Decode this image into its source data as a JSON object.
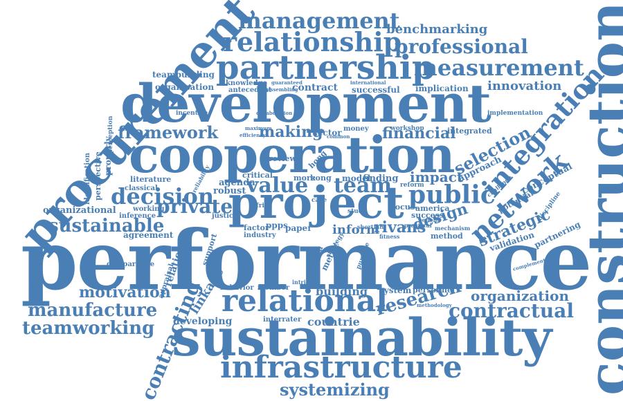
{
  "style": {
    "word_color": "#4a7fb5",
    "background": "#ffffff"
  },
  "words": [
    "performance",
    "construction",
    "sustainability",
    "cooperation",
    "development",
    "procurement",
    "project",
    "partnership",
    "relational",
    "infrastructure",
    "relationship",
    "management",
    "measurement",
    "professional",
    "benchmarking",
    "integration",
    "network",
    "public",
    "decision",
    "value",
    "team",
    "private",
    "framework",
    "sustainable",
    "manufacture",
    "teamworking",
    "contracting",
    "systemizing",
    "research",
    "contractual",
    "organization",
    "selection",
    "making",
    "financial",
    "motivation",
    "strategic",
    "design",
    "impact",
    "innovation",
    "rivans",
    "inform",
    "countrie",
    "building",
    "developing",
    "linkage",
    "organizational",
    "agreement",
    "contract",
    "successful",
    "implication",
    "organisation",
    "teambuilding",
    "approach",
    "conceptual",
    "partnering",
    "validation",
    "potential",
    "sector",
    "finding",
    "model",
    "agenda",
    "robust",
    "literature",
    "perspective",
    "identification",
    "properly",
    "classical",
    "inference",
    "working",
    "america",
    "success",
    "method",
    "metric",
    "ghana",
    "focus",
    "system",
    "personnel",
    "interrater",
    "member",
    "behavior",
    "support",
    "relation",
    "appraisal",
    "comparative",
    "knowledge",
    "antecedent",
    "integrated",
    "money",
    "workshop",
    "implementation",
    "incentive",
    "collaboration",
    "hong",
    "kong",
    "more",
    "critical",
    "review",
    "factor",
    "ppps",
    "paper",
    "industry",
    "justice",
    "mechanism",
    "challenge",
    "discipline",
    "complementary",
    "africa",
    "shortfall",
    "strategy",
    "purpose",
    "intrinsic",
    "study",
    "case",
    "fitness",
    "practical",
    "benefit",
    "assembling",
    "guaranteed",
    "international",
    "maximum",
    "efficiency",
    "methodology",
    "reliability",
    "perception",
    "common",
    "reform"
  ]
}
